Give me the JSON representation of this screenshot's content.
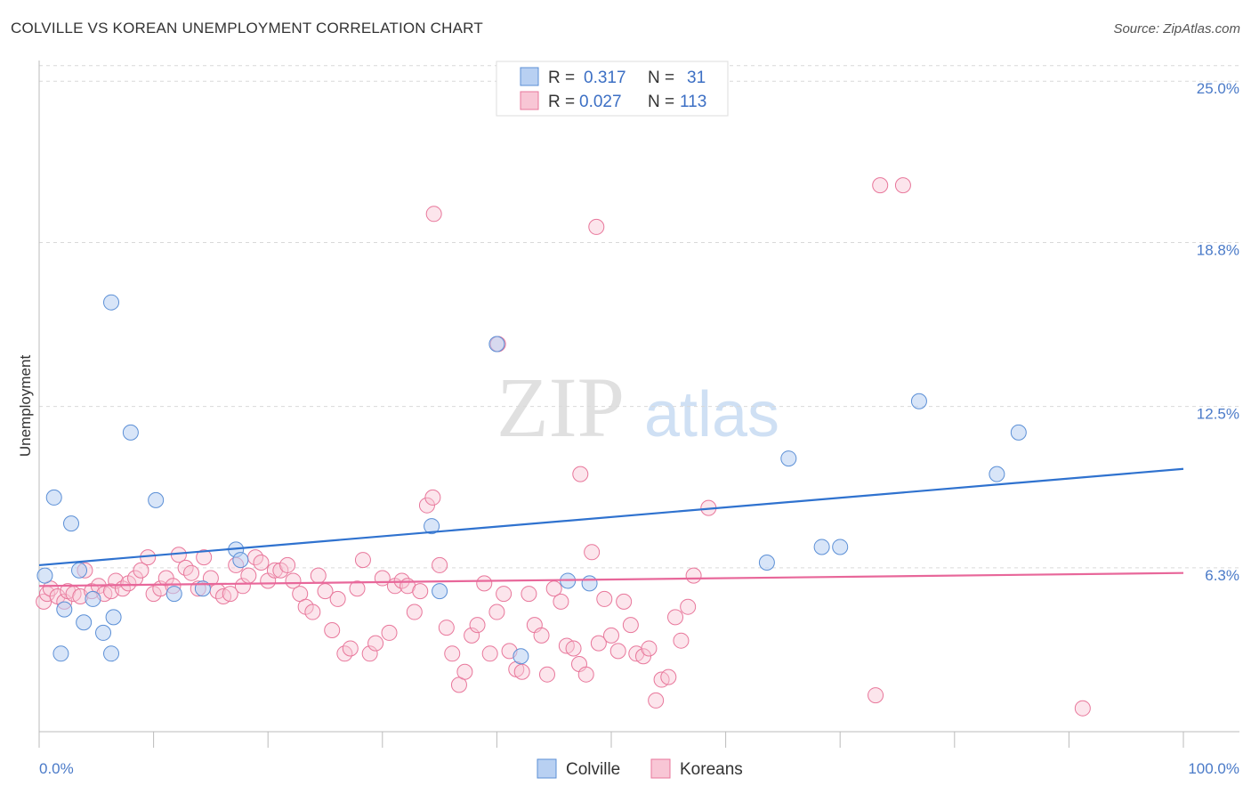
{
  "title": "COLVILLE VS KOREAN UNEMPLOYMENT CORRELATION CHART",
  "source": "Source: ZipAtlas.com",
  "watermark": {
    "zip": "ZIP",
    "atlas": "atlas"
  },
  "chart_data": {
    "type": "scatter",
    "title": "COLVILLE VS KOREAN UNEMPLOYMENT CORRELATION CHART",
    "xlabel": "",
    "ylabel": "Unemployment",
    "xlim": [
      0,
      100
    ],
    "ylim": [
      0,
      26
    ],
    "x_tick_labels": [
      "0.0%",
      "100.0%"
    ],
    "y_ticks": [
      6.3,
      12.5,
      18.8,
      25.0
    ],
    "y_tick_labels": [
      "6.3%",
      "12.5%",
      "18.8%",
      "25.0%"
    ],
    "grid": "horizontal dashed",
    "legend_position": "top-center",
    "colors": {
      "Colville": "#5b8fd6",
      "Colville_fill": "#b8d0f2",
      "Koreans": "#e8779b",
      "Koreans_fill": "#f8c6d5",
      "text_blue": "#3c6fc4"
    },
    "stats": [
      {
        "r_label": "R =",
        "r": "0.317",
        "n_label": "N =",
        "n": "31"
      },
      {
        "r_label": "R =",
        "r": "0.027",
        "n_label": "N =",
        "n": "113"
      }
    ],
    "series": [
      {
        "name": "Colville",
        "trend": [
          [
            0,
            6.4
          ],
          [
            100,
            10.1
          ]
        ],
        "points": [
          [
            0.5,
            6.0
          ],
          [
            1.3,
            9.0
          ],
          [
            2.2,
            4.7
          ],
          [
            2.8,
            8.0
          ],
          [
            3.5,
            6.2
          ],
          [
            3.9,
            4.2
          ],
          [
            4.7,
            5.1
          ],
          [
            5.6,
            3.8
          ],
          [
            6.5,
            4.4
          ],
          [
            6.3,
            3.0
          ],
          [
            1.9,
            3.0
          ],
          [
            6.3,
            16.5
          ],
          [
            8.0,
            11.5
          ],
          [
            10.2,
            8.9
          ],
          [
            11.8,
            5.3
          ],
          [
            14.3,
            5.5
          ],
          [
            17.2,
            7.0
          ],
          [
            17.6,
            6.6
          ],
          [
            34.3,
            7.9
          ],
          [
            35.0,
            5.4
          ],
          [
            40.0,
            14.9
          ],
          [
            42.1,
            2.9
          ],
          [
            46.2,
            5.8
          ],
          [
            48.1,
            5.7
          ],
          [
            63.6,
            6.5
          ],
          [
            65.5,
            10.5
          ],
          [
            68.4,
            7.1
          ],
          [
            70.0,
            7.1
          ],
          [
            76.9,
            12.7
          ],
          [
            83.7,
            9.9
          ],
          [
            85.6,
            11.5
          ]
        ]
      },
      {
        "name": "Koreans",
        "trend": [
          [
            0,
            5.6
          ],
          [
            100,
            6.1
          ]
        ],
        "points": [
          [
            0.4,
            5.0
          ],
          [
            0.7,
            5.3
          ],
          [
            1.0,
            5.5
          ],
          [
            1.6,
            5.2
          ],
          [
            2.2,
            5.0
          ],
          [
            2.5,
            5.4
          ],
          [
            3.0,
            5.3
          ],
          [
            3.6,
            5.2
          ],
          [
            4.0,
            6.2
          ],
          [
            4.6,
            5.4
          ],
          [
            5.2,
            5.6
          ],
          [
            5.7,
            5.3
          ],
          [
            6.3,
            5.4
          ],
          [
            6.7,
            5.8
          ],
          [
            7.3,
            5.5
          ],
          [
            7.8,
            5.7
          ],
          [
            8.4,
            5.9
          ],
          [
            8.9,
            6.2
          ],
          [
            9.5,
            6.7
          ],
          [
            10.0,
            5.3
          ],
          [
            10.6,
            5.5
          ],
          [
            11.1,
            5.9
          ],
          [
            11.7,
            5.6
          ],
          [
            12.2,
            6.8
          ],
          [
            12.8,
            6.3
          ],
          [
            13.3,
            6.1
          ],
          [
            13.9,
            5.5
          ],
          [
            14.4,
            6.7
          ],
          [
            15.0,
            5.9
          ],
          [
            15.6,
            5.4
          ],
          [
            16.1,
            5.2
          ],
          [
            16.7,
            5.3
          ],
          [
            17.2,
            6.4
          ],
          [
            17.8,
            5.6
          ],
          [
            18.3,
            6.0
          ],
          [
            18.9,
            6.7
          ],
          [
            19.4,
            6.5
          ],
          [
            20.0,
            5.8
          ],
          [
            20.6,
            6.2
          ],
          [
            21.1,
            6.2
          ],
          [
            21.7,
            6.4
          ],
          [
            22.2,
            5.8
          ],
          [
            22.8,
            5.3
          ],
          [
            23.3,
            4.8
          ],
          [
            23.9,
            4.6
          ],
          [
            24.4,
            6.0
          ],
          [
            25.0,
            5.4
          ],
          [
            25.6,
            3.9
          ],
          [
            26.1,
            5.1
          ],
          [
            26.7,
            3.0
          ],
          [
            27.2,
            3.2
          ],
          [
            27.8,
            5.5
          ],
          [
            28.3,
            6.6
          ],
          [
            28.9,
            3.0
          ],
          [
            29.4,
            3.4
          ],
          [
            30.0,
            5.9
          ],
          [
            30.6,
            3.8
          ],
          [
            31.1,
            5.6
          ],
          [
            31.7,
            5.8
          ],
          [
            32.2,
            5.6
          ],
          [
            32.8,
            4.6
          ],
          [
            33.3,
            5.4
          ],
          [
            33.9,
            8.7
          ],
          [
            34.4,
            9.0
          ],
          [
            35.0,
            6.4
          ],
          [
            35.6,
            4.0
          ],
          [
            36.1,
            3.0
          ],
          [
            36.7,
            1.8
          ],
          [
            37.2,
            2.3
          ],
          [
            37.8,
            3.7
          ],
          [
            38.3,
            4.1
          ],
          [
            38.9,
            5.7
          ],
          [
            39.4,
            3.0
          ],
          [
            40.0,
            4.6
          ],
          [
            40.6,
            5.3
          ],
          [
            41.1,
            3.1
          ],
          [
            41.7,
            2.4
          ],
          [
            42.2,
            2.3
          ],
          [
            42.8,
            5.3
          ],
          [
            43.3,
            4.1
          ],
          [
            43.9,
            3.7
          ],
          [
            44.4,
            2.2
          ],
          [
            45.0,
            5.5
          ],
          [
            45.6,
            5.0
          ],
          [
            46.1,
            3.3
          ],
          [
            46.7,
            3.2
          ],
          [
            47.2,
            2.6
          ],
          [
            47.8,
            2.2
          ],
          [
            48.3,
            6.9
          ],
          [
            48.9,
            3.4
          ],
          [
            49.4,
            5.1
          ],
          [
            50.0,
            3.7
          ],
          [
            50.6,
            3.1
          ],
          [
            51.1,
            5.0
          ],
          [
            51.7,
            4.1
          ],
          [
            52.2,
            3.0
          ],
          [
            52.8,
            2.9
          ],
          [
            53.3,
            3.2
          ],
          [
            53.9,
            1.2
          ],
          [
            54.4,
            2.0
          ],
          [
            55.0,
            2.1
          ],
          [
            55.6,
            4.4
          ],
          [
            56.1,
            3.5
          ],
          [
            56.7,
            4.8
          ],
          [
            34.5,
            19.9
          ],
          [
            48.7,
            19.4
          ],
          [
            40.1,
            14.9
          ],
          [
            47.3,
            9.9
          ],
          [
            58.5,
            8.6
          ],
          [
            73.5,
            21.0
          ],
          [
            75.5,
            21.0
          ],
          [
            73.1,
            1.4
          ],
          [
            91.2,
            0.9
          ],
          [
            57.2,
            6.0
          ]
        ]
      }
    ]
  },
  "legend_bottom": [
    "Colville",
    "Koreans"
  ]
}
